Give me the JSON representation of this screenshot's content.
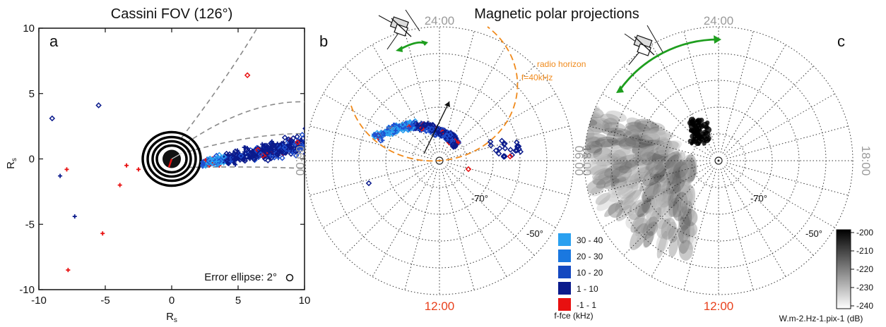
{
  "title_left": "Cassini FOV (126°)",
  "title_center": "Magnetic polar projections",
  "colors": {
    "accent_red": "#e8401c",
    "orange": "#f08a1c",
    "green": "#1e9e1e",
    "clock_grey": "#9a9a9a",
    "dark_blue": "#0a1a8c",
    "mid_blue": "#1f4fcf",
    "light_blue": "#2aa0f0",
    "red": "#e81010"
  },
  "chart_data": [
    {
      "type": "scatter",
      "panel": "a",
      "title": "Cassini FOV (126°)",
      "xlabel": "R",
      "xlabel_sub": "s",
      "ylabel": "R",
      "ylabel_sub": "s",
      "xlim": [
        -10,
        10
      ],
      "ylim": [
        -10,
        10
      ],
      "xticks": [
        "-10",
        "-5",
        "0",
        "5",
        "10"
      ],
      "yticks": [
        "10",
        "5",
        "0",
        "-5",
        "-10"
      ],
      "annotation": "Error ellipse: 2°",
      "outliers_red_plus": [
        [
          -7.9,
          -0.8
        ],
        [
          -3.9,
          -2.0
        ],
        [
          -3.4,
          -0.5
        ],
        [
          -2.5,
          -0.8
        ],
        [
          -7.8,
          -8.5
        ],
        [
          -5.2,
          -5.7
        ]
      ],
      "outliers_blue_plus": [
        [
          -8.4,
          -1.3
        ],
        [
          -7.3,
          -4.4
        ]
      ],
      "outliers_blue_diamond": [
        [
          -9.0,
          3.1
        ],
        [
          -5.5,
          4.1
        ]
      ],
      "outliers_red_diamond": [
        [
          5.7,
          6.4
        ]
      ]
    },
    {
      "type": "scatter",
      "panel": "b",
      "projection": "magnetic polar",
      "clock_labels": [
        "24:00",
        "06:00",
        "12:00",
        "18:00"
      ],
      "latitude_labels": [
        "-70°",
        "-50°"
      ],
      "annotation": [
        "radio horizon",
        "f=40kHz"
      ],
      "legend_title": "f-fce (kHz)",
      "legend": [
        {
          "label": "30 - 40",
          "color": "#2aa0f0"
        },
        {
          "label": "20 - 30",
          "color": "#1a78e0"
        },
        {
          "label": "10 - 20",
          "color": "#1448c0"
        },
        {
          "label": "1 - 10",
          "color": "#0a1a8c"
        },
        {
          "label": "-1 - 1",
          "color": "#e81010"
        }
      ]
    },
    {
      "type": "heatmap",
      "panel": "c",
      "projection": "magnetic polar",
      "clock_labels": [
        "24:00",
        "06:00",
        "12:00",
        "18:00"
      ],
      "latitude_labels": [
        "-70°",
        "-50°"
      ],
      "colorbar_ticks": [
        "-200",
        "-210",
        "-220",
        "-230",
        "-240"
      ],
      "colorbar_range": [
        -240,
        -200
      ],
      "colorbar_label": "W.m-2.Hz-1.pix-1 (dB)"
    }
  ]
}
